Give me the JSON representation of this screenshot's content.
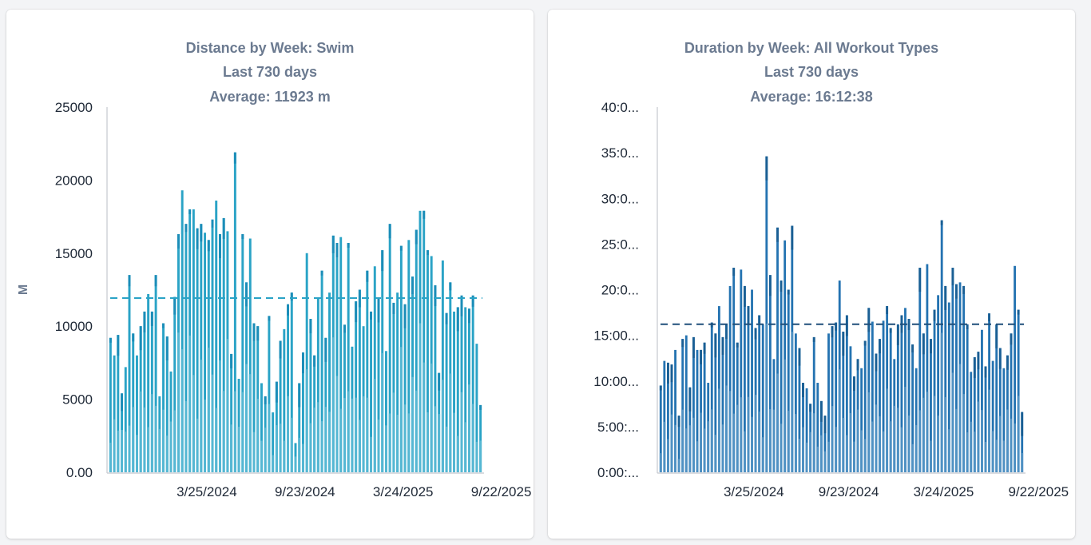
{
  "chart_data": [
    {
      "type": "bar",
      "title": "Distance by Week: Swim",
      "subtitle": "Last 730 days",
      "average_label": "Average: 11923 m",
      "average": 11923,
      "xlabel": "",
      "ylabel": "M",
      "ylim": [
        0,
        25000
      ],
      "y_ticks": [
        "0.00",
        "5000",
        "10000",
        "15000",
        "20000",
        "25000"
      ],
      "y_tick_values": [
        0,
        5000,
        10000,
        15000,
        20000,
        25000
      ],
      "x_ticks": [
        "3/25/2024",
        "9/23/2024",
        "3/24/2025",
        "9/22/2025"
      ],
      "x_tick_indices": [
        26,
        52,
        78,
        104
      ],
      "colors": {
        "dark": "#1b8db8",
        "mid": "#2aa3c6",
        "light": "#55b7d3",
        "average": "#2aa3c6"
      },
      "values": [
        9200,
        8000,
        9400,
        5400,
        7200,
        13500,
        9500,
        8000,
        10000,
        11000,
        12200,
        11000,
        13500,
        5200,
        10200,
        9300,
        6900,
        12000,
        16300,
        19300,
        17000,
        18000,
        18000,
        16700,
        17000,
        16400,
        15900,
        17300,
        18600,
        16300,
        17400,
        16500,
        8100,
        21900,
        6400,
        16300,
        13000,
        16000,
        10200,
        10000,
        6100,
        5200,
        10700,
        4100,
        6200,
        9000,
        9800,
        11500,
        12300,
        2000,
        6100,
        8200,
        15000,
        10500,
        8000,
        11900,
        13800,
        9200,
        12300,
        16200,
        15700,
        16100,
        10100,
        15700,
        8600,
        11700,
        12500,
        10000,
        13800,
        11000,
        14100,
        11900,
        15200,
        8300,
        17000,
        11600,
        12300,
        15500,
        11500,
        15900,
        13400,
        16600,
        17900,
        17900,
        15200,
        14800,
        12800,
        6800,
        14500,
        10900,
        13000,
        11000,
        11300,
        12100,
        11300,
        11200,
        12100,
        8800,
        4600
      ]
    },
    {
      "type": "bar",
      "title": "Duration by Week: All Workout Types",
      "subtitle": "Last 730 days",
      "average_label": "Average: 16:12:38",
      "average": 16.21,
      "xlabel": "",
      "ylabel": "",
      "ylim": [
        0,
        40
      ],
      "y_ticks": [
        "0:00:...",
        "5:00:...",
        "10:00...",
        "15:00...",
        "20:0...",
        "25:0...",
        "30:0...",
        "35:0...",
        "40:0..."
      ],
      "y_tick_values": [
        0,
        5,
        10,
        15,
        20,
        25,
        30,
        35,
        40
      ],
      "x_ticks": [
        "3/25/2024",
        "9/23/2024",
        "3/24/2025",
        "9/22/2025"
      ],
      "x_tick_indices": [
        26,
        52,
        78,
        104
      ],
      "colors": {
        "dark": "#1a5f94",
        "mid": "#2473b1",
        "light": "#4f91c3",
        "average": "#1f4f7a"
      },
      "values": [
        9.5,
        12.2,
        12.0,
        11.8,
        13.4,
        6.2,
        14.6,
        15.0,
        9.3,
        14.8,
        13.4,
        13.4,
        14.2,
        9.8,
        16.4,
        15.2,
        18.2,
        14.8,
        16.2,
        20.4,
        22.4,
        14.2,
        22.2,
        20.4,
        18.2,
        20.0,
        15.8,
        17.2,
        16.2,
        34.6,
        21.6,
        12.4,
        26.8,
        21.0,
        25.4,
        20.0,
        27.0,
        15.2,
        13.6,
        9.8,
        9.2,
        7.5,
        14.8,
        9.8,
        7.8,
        6.2,
        15.2,
        16.0,
        16.4,
        21.0,
        15.4,
        17.2,
        13.8,
        10.5,
        12.4,
        11.4,
        14.4,
        18.0,
        16.5,
        13.0,
        14.6,
        16.6,
        18.2,
        15.8,
        12.4,
        16.2,
        17.2,
        18.0,
        16.8,
        14.0,
        11.4,
        22.4,
        15.2,
        22.8,
        14.6,
        17.8,
        19.4,
        27.6,
        20.4,
        18.6,
        22.4,
        20.6,
        20.8,
        20.4,
        16.2,
        11.0,
        12.6,
        13.2,
        15.6,
        11.6,
        17.4,
        12.2,
        16.2,
        13.6,
        11.4,
        12.8,
        15.2,
        22.6,
        17.8,
        6.6
      ]
    }
  ]
}
